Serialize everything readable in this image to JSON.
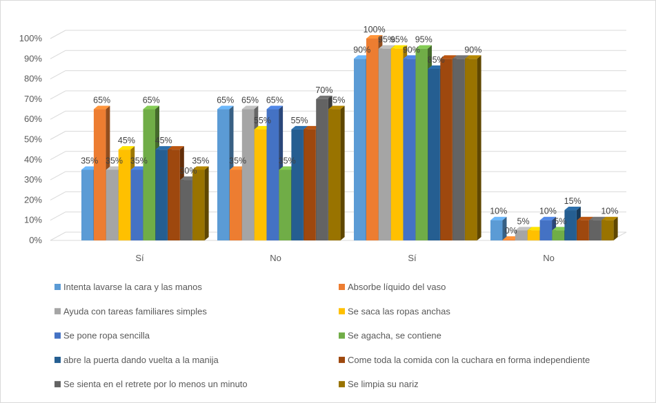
{
  "chart_data": {
    "type": "bar",
    "style": "3d-clustered-column",
    "categories": [
      "Sí",
      "No",
      "Sí",
      "No"
    ],
    "yticks": [
      "0%",
      "10%",
      "20%",
      "30%",
      "40%",
      "50%",
      "60%",
      "70%",
      "80%",
      "90%",
      "100%"
    ],
    "ylim": [
      0,
      100
    ],
    "grid": true,
    "legend_position": "bottom",
    "series": [
      {
        "name": "Intenta lavarse la cara y las manos",
        "color": "#5b9bd5",
        "values": [
          35,
          65,
          90,
          10
        ],
        "labels": [
          "35%",
          "65%",
          "90%",
          "10%"
        ]
      },
      {
        "name": "Absorbe líquido del vaso",
        "color": "#ed7d31",
        "values": [
          65,
          35,
          100,
          0
        ],
        "labels": [
          "65%",
          "35%",
          "100%",
          "0%"
        ]
      },
      {
        "name": "Ayuda con tareas familiares simples",
        "color": "#a5a5a5",
        "values": [
          35,
          65,
          95,
          5
        ],
        "labels": [
          "35%",
          "65%",
          "95%",
          "5%"
        ]
      },
      {
        "name": "Se saca las ropas anchas",
        "color": "#ffc000",
        "values": [
          45,
          55,
          95,
          5
        ],
        "labels": [
          "45%",
          "55%",
          "95%",
          ""
        ]
      },
      {
        "name": "Se pone ropa sencilla",
        "color": "#4472c4",
        "values": [
          35,
          65,
          90,
          10
        ],
        "labels": [
          "35%",
          "65%",
          "90%",
          "10%"
        ]
      },
      {
        "name": "Se agacha, se contiene",
        "color": "#70ad47",
        "values": [
          65,
          35,
          95,
          5
        ],
        "labels": [
          "65%",
          "35%",
          "95%",
          "5%"
        ]
      },
      {
        "name": "abre la puerta dando vuelta a la manija",
        "color": "#255e91",
        "values": [
          45,
          55,
          85,
          15
        ],
        "labels": [
          "45%",
          "55%",
          "85%",
          "15%"
        ]
      },
      {
        "name": "Come toda la comida con la cuchara en forma independiente",
        "color": "#9e480e",
        "values": [
          45,
          55,
          90,
          10
        ],
        "labels": [
          "",
          "",
          "",
          ""
        ]
      },
      {
        "name": "Se sienta en el retrete por lo menos un minuto",
        "color": "#636363",
        "values": [
          30,
          70,
          90,
          10
        ],
        "labels": [
          "30%",
          "70%",
          "",
          ""
        ]
      },
      {
        "name": "Se limpia su nariz",
        "color": "#997300",
        "values": [
          35,
          65,
          90,
          10
        ],
        "labels": [
          "35%",
          "65%",
          "90%",
          "10%"
        ]
      }
    ]
  }
}
